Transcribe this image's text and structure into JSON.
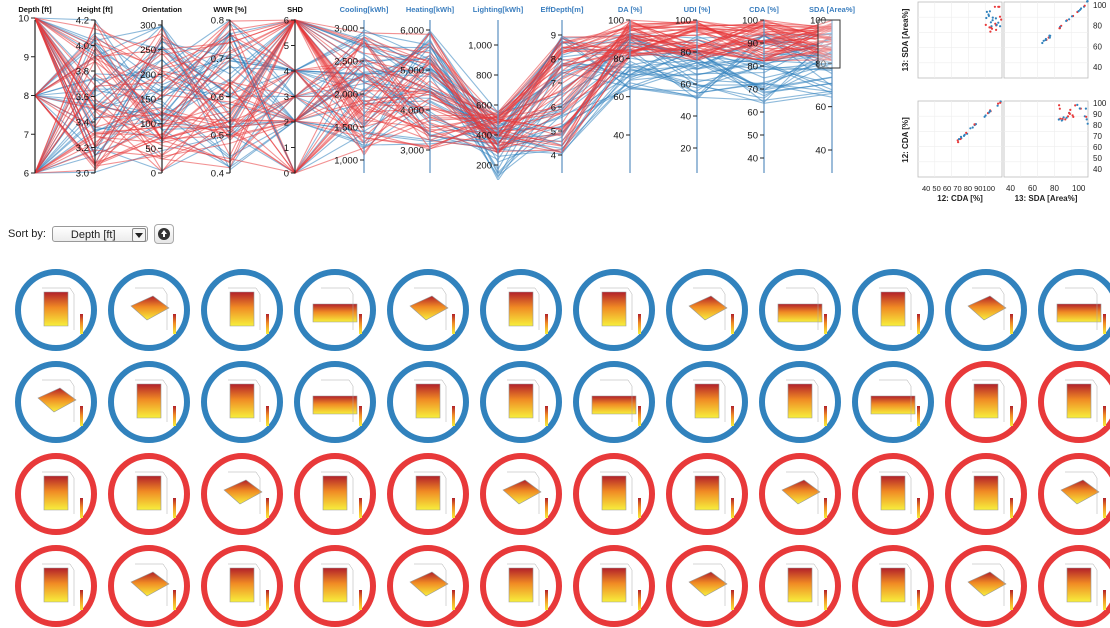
{
  "colors": {
    "blue": "#3182bd",
    "red": "#e8393a",
    "axis_label_black": "#111111",
    "axis_label_blue": "#3c7fbf"
  },
  "parallel_coordinates": {
    "axes": [
      {
        "label": "Depth [ft]",
        "ticks": [
          "10",
          "9",
          "8",
          "7",
          "6"
        ],
        "label_color": "black"
      },
      {
        "label": "Height [ft]",
        "ticks": [
          "4.2",
          "4.0",
          "3.8",
          "3.6",
          "3.4",
          "3.2",
          "3.0"
        ],
        "label_color": "black"
      },
      {
        "label": "Orientation",
        "ticks": [
          "300",
          "250",
          "200",
          "150",
          "100",
          "50",
          "0"
        ],
        "label_color": "black"
      },
      {
        "label": "WWR [%]",
        "ticks": [
          "0.8",
          "0.7",
          "0.6",
          "0.5",
          "0.4"
        ],
        "label_color": "black"
      },
      {
        "label": "SHD",
        "ticks": [
          "6",
          "5",
          "4",
          "3",
          "2",
          "1",
          "0"
        ],
        "label_color": "black"
      },
      {
        "label": "Cooling[kWh]",
        "ticks": [
          "3,000",
          "2,500",
          "2,000",
          "1,500",
          "1,000"
        ],
        "label_color": "blue"
      },
      {
        "label": "Heating[kWh]",
        "ticks": [
          "6,000",
          "5,000",
          "4,000",
          "3,000"
        ],
        "label_color": "blue"
      },
      {
        "label": "Lighting[kWh]",
        "ticks": [
          "1,000",
          "800",
          "600",
          "400",
          "200"
        ],
        "label_color": "blue"
      },
      {
        "label": "EffDepth[m]",
        "ticks": [
          "9",
          "8",
          "7",
          "6",
          "5",
          "4"
        ],
        "label_color": "blue"
      },
      {
        "label": "DA [%]",
        "ticks": [
          "100",
          "80",
          "60",
          "40"
        ],
        "label_color": "blue"
      },
      {
        "label": "UDI [%]",
        "ticks": [
          "100",
          "80",
          "60",
          "40",
          "20"
        ],
        "label_color": "blue"
      },
      {
        "label": "CDA [%]",
        "ticks": [
          "100",
          "90",
          "80",
          "70",
          "60",
          "50",
          "40"
        ],
        "label_color": "blue"
      },
      {
        "label": "SDA [Area%]",
        "ticks": [
          "100",
          "80",
          "60",
          "40"
        ],
        "label_color": "blue"
      }
    ],
    "line_counts": {
      "blue": 40,
      "red": 48
    }
  },
  "scatter_matrix": {
    "row_labels": [
      "13: SDA [Area%]",
      "12: CDA [%]"
    ],
    "col_labels": [
      "12: CDA [%]",
      "13: SDA [Area%]"
    ],
    "right_ticks_top": [
      "100",
      "80",
      "60",
      "40"
    ],
    "right_ticks_bottom": [
      "100",
      "90",
      "80",
      "70",
      "60",
      "50",
      "40"
    ],
    "bottom_ticks_left": "40 50 60 70 80 90100",
    "bottom_ticks_right": [
      "40",
      "60",
      "80",
      "100"
    ]
  },
  "sort": {
    "label": "Sort by:",
    "selected": "Depth [ft]"
  },
  "thumbnails": {
    "rows": [
      [
        "blue",
        "blue",
        "blue",
        "blue",
        "blue",
        "blue",
        "blue",
        "blue",
        "blue",
        "blue",
        "blue",
        "blue"
      ],
      [
        "blue",
        "blue",
        "blue",
        "blue",
        "blue",
        "blue",
        "blue",
        "blue",
        "blue",
        "blue",
        "red",
        "red"
      ],
      [
        "red",
        "red",
        "red",
        "red",
        "red",
        "red",
        "red",
        "red",
        "red",
        "red",
        "red",
        "red"
      ],
      [
        "red",
        "red",
        "red",
        "red",
        "red",
        "red",
        "red",
        "red",
        "red",
        "red",
        "red",
        "red"
      ]
    ]
  }
}
